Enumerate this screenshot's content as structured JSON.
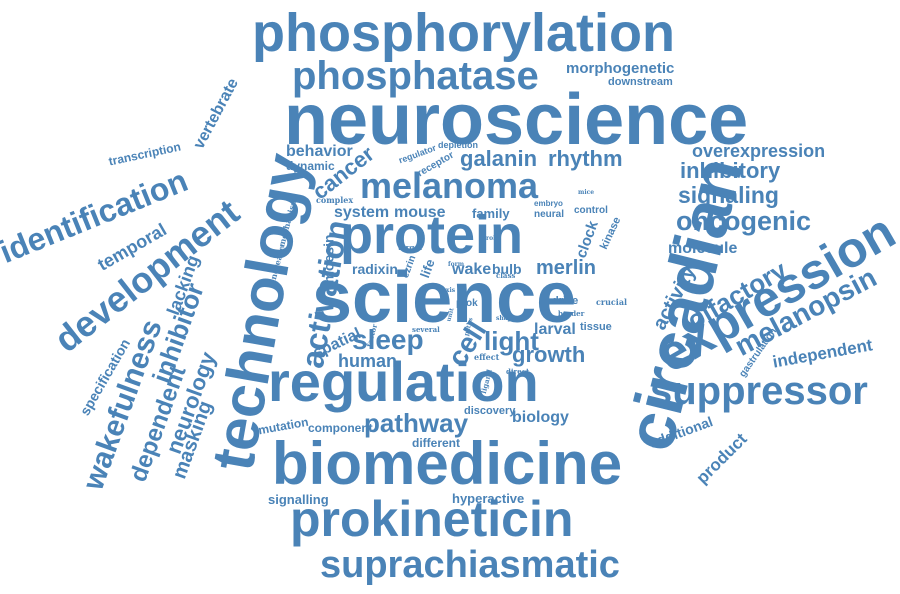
{
  "color": "#4a83b7",
  "background": "#ffffff",
  "words": [
    "phosphorylation",
    "phosphatase",
    "morphogenetic",
    "downstream",
    "neuroscience",
    "overexpression",
    "inhibitory",
    "signaling",
    "oncogenic",
    "molecule",
    "melanopsin",
    "expression",
    "olfactory",
    "activity",
    "independent",
    "suppressor",
    "gastrulation",
    "additional",
    "product",
    "circadian",
    "technology",
    "identification",
    "development",
    "wakefulness",
    "regulation",
    "biomedicine",
    "prokineticin",
    "suprachiasmatic",
    "protein",
    "science",
    "melanoma",
    "rhythm",
    "galanin",
    "cancer",
    "behavior",
    "dynamic",
    "regulator",
    "depletion",
    "receptor",
    "system",
    "mouse",
    "family",
    "neural",
    "embryo",
    "control",
    "kinase",
    "clock",
    "activation",
    "radixin",
    "moesin",
    "life",
    "wake",
    "bulb",
    "merlin",
    "sleep",
    "light",
    "cell",
    "larval",
    "tissue",
    "growth",
    "spatial",
    "human",
    "pathway",
    "biology",
    "discovery",
    "different",
    "component",
    "mutation",
    "signalling",
    "hyperactive",
    "dependent",
    "inhibitor",
    "neurology",
    "masking",
    "specification",
    "lacking",
    "temporal",
    "vertebrate",
    "transcription",
    "mechanism",
    "complex",
    "increase",
    "target",
    "ezrin",
    "effect",
    "prok",
    "drive",
    "crucial",
    "border",
    "class",
    "several",
    "factor",
    "direct",
    "ligand",
    "form",
    "axis",
    "paths",
    "shape",
    "mice",
    "role",
    "unit"
  ]
}
